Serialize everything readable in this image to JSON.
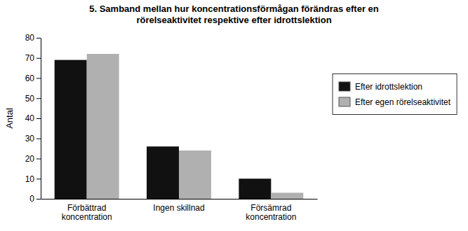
{
  "chart_data": {
    "type": "bar",
    "title": "5. Samband mellan hur koncentrationsförmågan förändras efter en\nrörelseaktivitet respektive efter idrottslektion",
    "ylabel": "Antal",
    "categories": [
      "Förbättrad\nkoncentration",
      "Ingen skillnad",
      "Försämrad\nkoncentration"
    ],
    "series": [
      {
        "name": "Efter idrottslektion",
        "color": "#111111",
        "values": [
          69,
          26,
          10
        ]
      },
      {
        "name": "Efter egen rörelseaktivitet",
        "color": "#b0b0b0",
        "values": [
          72,
          24,
          3
        ]
      }
    ],
    "ylim": [
      0,
      80
    ],
    "yticks": [
      0,
      10,
      20,
      30,
      40,
      50,
      60,
      70,
      80
    ],
    "grid": false,
    "legend": "right"
  }
}
